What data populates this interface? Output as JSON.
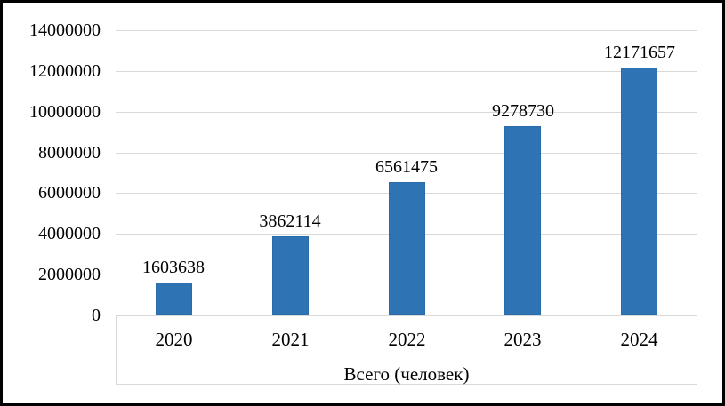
{
  "chart_data": {
    "type": "bar",
    "categories": [
      "2020",
      "2021",
      "2022",
      "2023",
      "2024"
    ],
    "values": [
      1603638,
      3862114,
      6561475,
      9278730,
      12171657
    ],
    "data_labels": [
      "1603638",
      "3862114",
      "6561475",
      "9278730",
      "12171657"
    ],
    "title": "",
    "xlabel": "Всего (человек)",
    "ylabel": "",
    "ylim": [
      0,
      14000000
    ],
    "y_tick_interval": 2000000,
    "y_tick_labels": [
      "0",
      "2000000",
      "4000000",
      "6000000",
      "8000000",
      "10000000",
      "12000000",
      "14000000"
    ],
    "grid": true,
    "legend": false,
    "colors": {
      "bar_fill": "#2E74B5",
      "bar_border": "#2A6CA9",
      "gridline": "#D9D9D9",
      "axis_box_border": "#D9D9D9",
      "text": "#000000",
      "background": "#FFFFFF",
      "outer_border": "#000000"
    }
  }
}
